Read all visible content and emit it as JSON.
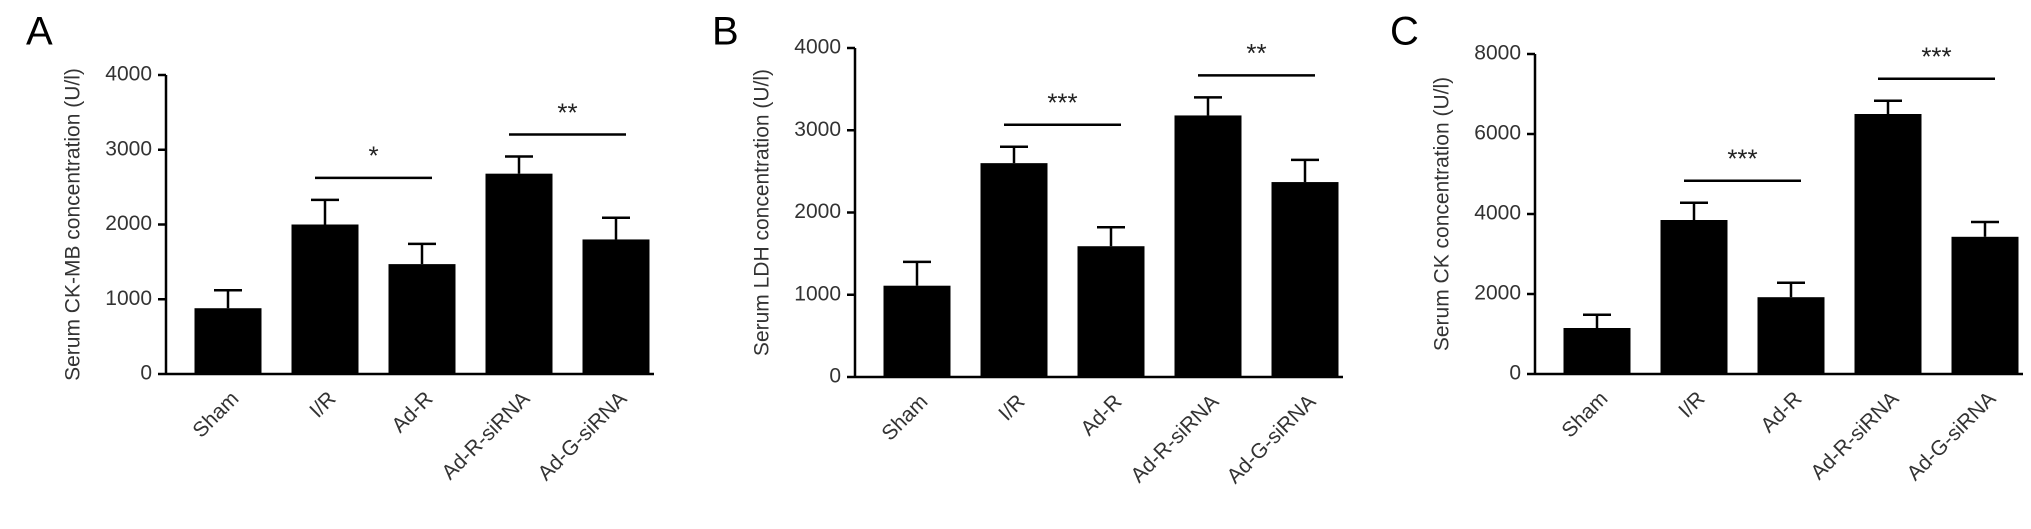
{
  "chart_data": [
    {
      "type": "bar",
      "panel": "A",
      "y_label": "Serum CK-MB concentration (U/l)",
      "categories": [
        "Sham",
        "I/R",
        "Ad-R",
        "Ad-R-siRNA",
        "Ad-G-siRNA"
      ],
      "values": [
        880,
        2000,
        1470,
        2680,
        1800
      ],
      "errors": [
        240,
        330,
        270,
        230,
        290
      ],
      "color": "#000000",
      "ylim": [
        0,
        4000
      ],
      "yticks": [
        0,
        1000,
        2000,
        3000,
        4000
      ],
      "annotations": [
        {
          "text": "*",
          "pair": [
            "I/R",
            "Ad-R"
          ]
        },
        {
          "text": "**",
          "pair": [
            "Ad-R-siRNA",
            "Ad-G-siRNA"
          ]
        }
      ]
    },
    {
      "type": "bar",
      "panel": "B",
      "y_label": "Serum LDH concentration (U/l)",
      "categories": [
        "Sham",
        "I/R",
        "Ad-R",
        "Ad-R-siRNA",
        "Ad-G-siRNA"
      ],
      "values": [
        1110,
        2600,
        1590,
        3180,
        2370
      ],
      "errors": [
        290,
        200,
        230,
        220,
        270
      ],
      "color": "#000000",
      "ylim": [
        0,
        4000
      ],
      "yticks": [
        0,
        1000,
        2000,
        3000,
        4000
      ],
      "annotations": [
        {
          "text": "***",
          "pair": [
            "I/R",
            "Ad-R"
          ]
        },
        {
          "text": "**",
          "pair": [
            "Ad-R-siRNA",
            "Ad-G-siRNA"
          ]
        }
      ]
    },
    {
      "type": "bar",
      "panel": "C",
      "y_label": "Serum CK concentration (U/l)",
      "categories": [
        "Sham",
        "I/R",
        "Ad-R",
        "Ad-R-siRNA",
        "Ad-G-siRNA"
      ],
      "values": [
        1150,
        3850,
        1920,
        6500,
        3430
      ],
      "errors": [
        330,
        430,
        360,
        330,
        370
      ],
      "color": "#000000",
      "ylim": [
        0,
        8000
      ],
      "yticks": [
        0,
        2000,
        4000,
        6000,
        8000
      ],
      "annotations": [
        {
          "text": "***",
          "pair": [
            "I/R",
            "Ad-R"
          ]
        },
        {
          "text": "***",
          "pair": [
            "Ad-R-siRNA",
            "Ad-G-siRNA"
          ]
        }
      ]
    }
  ]
}
